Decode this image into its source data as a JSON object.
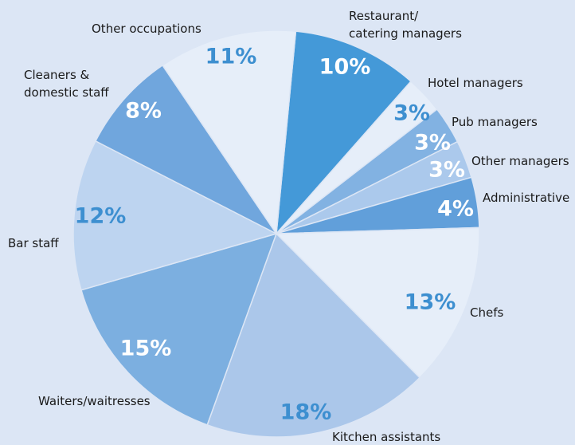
{
  "chart_data": {
    "type": "pie",
    "categories": [
      "Restaurant/\ncatering managers",
      "Hotel managers",
      "Pub managers",
      "Other managers",
      "Administrative",
      "Chefs",
      "Kitchen assistants",
      "Waiters/waitresses",
      "Bar staff",
      "Cleaners &\ndomestic staff",
      "Other occupations"
    ],
    "values": [
      10,
      3,
      3,
      3,
      4,
      13,
      18,
      15,
      12,
      8,
      11
    ],
    "value_labels": [
      "10%",
      "3%",
      "3%",
      "3%",
      "4%",
      "13%",
      "18%",
      "15%",
      "12%",
      "8%",
      "11%"
    ],
    "colors": [
      "#4499d8",
      "#e6eef9",
      "#82b2e2",
      "#abc9ec",
      "#619fda",
      "#e6eef9",
      "#abc7ea",
      "#7cafe0",
      "#bdd4f0",
      "#70a6dd",
      "#e6eef9"
    ],
    "label_colors": [
      "#ffffff",
      "#3d8fd0",
      "#ffffff",
      "#ffffff",
      "#ffffff",
      "#3d8fd0",
      "#3d8fd0",
      "#ffffff",
      "#3d8fd0",
      "#ffffff",
      "#3d8fd0"
    ]
  }
}
